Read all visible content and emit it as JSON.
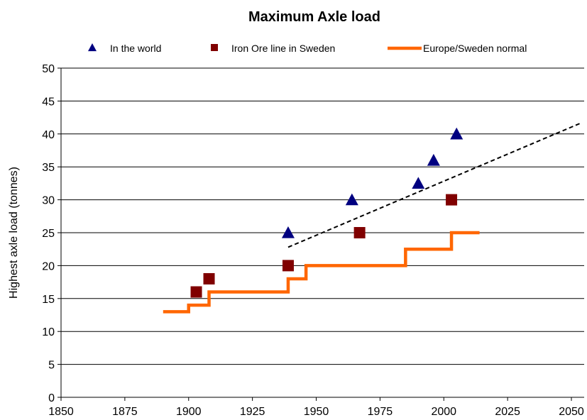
{
  "chart_data": {
    "type": "scatter",
    "title": "Maximum Axle load",
    "xlabel": "",
    "ylabel": "Highest axle load (tonnes)",
    "xlim": [
      1850,
      2055
    ],
    "ylim": [
      0,
      50
    ],
    "x_ticks": [
      1850,
      1875,
      1900,
      1925,
      1950,
      1975,
      2000,
      2025,
      2050
    ],
    "y_ticks": [
      0,
      5,
      10,
      15,
      20,
      25,
      30,
      35,
      40,
      45,
      50
    ],
    "grid": "horizontal",
    "legend_position": "top",
    "series": [
      {
        "name": "In the world",
        "marker": "triangle",
        "color": "#000080",
        "points": [
          [
            1939,
            25
          ],
          [
            1964,
            30
          ],
          [
            1990,
            32.5
          ],
          [
            1996,
            36
          ],
          [
            2005,
            40
          ]
        ]
      },
      {
        "name": "Iron Ore line in Sweden",
        "marker": "square",
        "color": "#800000",
        "points": [
          [
            1903,
            16
          ],
          [
            1908,
            18
          ],
          [
            1939,
            20
          ],
          [
            1967,
            25
          ],
          [
            2003,
            30
          ]
        ]
      },
      {
        "name": "Europe/Sweden normal",
        "marker": "step-line",
        "color": "#FF6600",
        "points": [
          [
            1890,
            13
          ],
          [
            1900,
            13
          ],
          [
            1900,
            14
          ],
          [
            1908,
            14
          ],
          [
            1908,
            16
          ],
          [
            1939,
            16
          ],
          [
            1939,
            18
          ],
          [
            1946,
            18
          ],
          [
            1946,
            20
          ],
          [
            1985,
            20
          ],
          [
            1985,
            22.5
          ],
          [
            2003,
            22.5
          ],
          [
            2003,
            25
          ],
          [
            2014,
            25
          ]
        ]
      }
    ],
    "trend_line": {
      "style": "dashed",
      "color": "#000000",
      "points": [
        [
          1939,
          22.8
        ],
        [
          2054,
          41.7
        ]
      ]
    }
  }
}
